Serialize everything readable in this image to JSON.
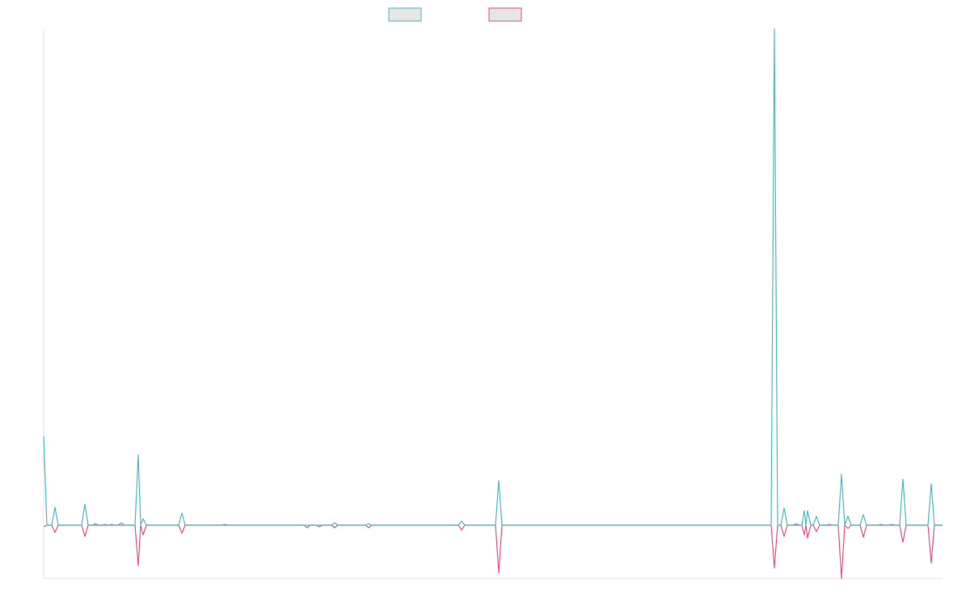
{
  "chart_data": {
    "type": "line",
    "x": [
      0,
      4,
      10,
      14,
      18,
      47,
      51,
      55,
      60,
      64,
      68,
      72,
      76,
      80,
      84,
      88,
      92,
      96,
      100,
      113,
      117,
      120,
      123,
      127,
      167,
      171,
      175,
      220,
      224,
      228,
      322,
      326,
      330,
      337,
      341,
      345,
      356,
      360,
      364,
      398,
      402,
      406,
      513,
      517,
      521,
      559,
      563,
      567,
      900,
      904,
      908,
      912,
      916,
      920,
      927,
      931,
      935,
      938,
      941,
      943,
      945,
      949,
      952,
      956,
      960,
      968,
      972,
      976,
      983,
      987,
      991,
      995,
      999,
      1010,
      1014,
      1018,
      1032,
      1036,
      1040,
      1045,
      1049,
      1053,
      1059,
      1063,
      1067,
      1094,
      1098,
      1102,
      1112
    ],
    "series": [
      {
        "color": "#4bbcc4",
        "values": [
          110,
          0,
          0,
          22,
          0,
          0,
          26,
          0,
          0,
          2,
          0,
          0,
          1,
          0,
          1,
          0,
          0,
          3,
          0,
          0,
          87,
          0,
          8,
          0,
          0,
          15,
          0,
          0,
          1,
          0,
          0,
          0,
          0,
          0,
          0,
          0,
          0,
          3,
          0,
          0,
          2,
          0,
          0,
          5,
          0,
          0,
          55,
          0,
          0,
          614,
          0,
          0,
          21,
          0,
          0,
          2,
          0,
          0,
          18,
          0,
          18,
          0,
          0,
          11,
          0,
          0,
          1,
          0,
          0,
          63,
          0,
          11,
          0,
          0,
          13,
          0,
          0,
          1,
          0,
          0,
          1,
          0,
          0,
          57,
          0,
          0,
          51,
          0,
          0
        ]
      },
      {
        "color": "#f0507a",
        "values": [
          -2,
          0,
          0,
          -9,
          0,
          0,
          -14,
          0,
          0,
          0,
          0,
          0,
          0,
          0,
          0,
          0,
          0,
          0,
          0,
          0,
          -50,
          0,
          -12,
          0,
          0,
          -10,
          0,
          0,
          0,
          0,
          0,
          -3,
          0,
          0,
          -2,
          0,
          0,
          -3,
          0,
          0,
          -3,
          0,
          0,
          -6,
          0,
          0,
          -59,
          0,
          0,
          -53,
          0,
          0,
          -14,
          0,
          0,
          0,
          0,
          0,
          -12,
          0,
          -16,
          0,
          0,
          -8,
          0,
          0,
          0,
          0,
          0,
          -66,
          0,
          -4,
          0,
          0,
          -15,
          0,
          0,
          0,
          0,
          0,
          0,
          0,
          0,
          -21,
          0,
          0,
          -47,
          0,
          0
        ]
      }
    ],
    "xlim": [
      0,
      1112
    ],
    "ylim": [
      -66,
      614
    ]
  }
}
